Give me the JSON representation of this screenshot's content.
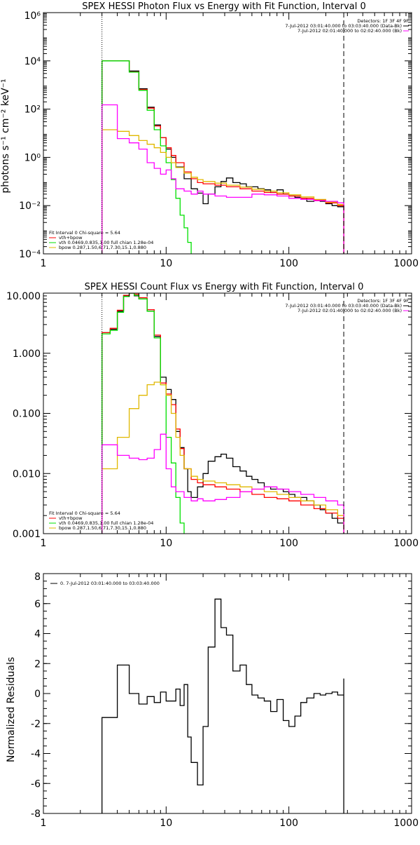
{
  "colors": {
    "background": "#ffffff",
    "axes": "#000000",
    "data": "#000000",
    "total": "#ff0000",
    "vth": "#00e000",
    "bpow": "#e0b800",
    "bk": "#ff00ff"
  },
  "chart_data": [
    {
      "type": "line",
      "title": "SPEX HESSI Photon Flux vs Energy with Fit Function, Interval 0",
      "xlabel": "",
      "ylabel": "photons s⁻¹ cm⁻² keV⁻¹",
      "xscale": "log",
      "yscale": "log",
      "xlim": [
        1,
        1000
      ],
      "ylim": [
        0.0001,
        1000000
      ],
      "xticks": [
        1,
        10,
        100,
        1000
      ],
      "xtick_labels": [
        "1",
        "10",
        "100",
        "1000"
      ],
      "yticks": [
        0.0001,
        0.01,
        1,
        100,
        10000,
        1000000
      ],
      "ytick_labels": [
        "10⁻⁴",
        "10⁻²",
        "10⁰",
        "10²",
        "10⁴",
        "10⁶"
      ],
      "vlines": [
        {
          "x": 3,
          "style": "dotted"
        },
        {
          "x": 280,
          "style": "dashed"
        }
      ],
      "detectors_label": "Detectors: 1F 3F 4F 9F",
      "header_lines": [
        "7-Jul-2012 03:01:40.000 to 03:03:40.000 (Data-Bk)",
        "7-Jul-2012 02:01:40.000 to 02:02:40.000 (Bk)"
      ],
      "fit_lines": [
        "Fit Interval 0   Chi-square = 5.64",
        "vth+bpow",
        "vth 0.0469,0.835,1.00  full chian 1.28e-04",
        "bpow 0.287,1.50,6.71,7.30,15.1,0.880"
      ],
      "series": [
        {
          "name": "Data-Bk",
          "color": "#000000",
          "x": [
            3,
            4,
            5,
            6,
            7,
            8,
            9,
            10,
            11,
            12,
            14,
            16,
            18,
            20,
            22,
            25,
            28,
            31,
            35,
            40,
            45,
            50,
            56,
            63,
            71,
            80,
            90,
            100,
            112,
            125,
            140,
            160,
            180,
            200,
            225,
            250,
            280
          ],
          "y": [
            10000,
            10000,
            3800,
            700,
            120,
            22,
            6.5,
            2.2,
            1.0,
            0.4,
            0.13,
            0.05,
            0.033,
            0.012,
            0.03,
            0.06,
            0.1,
            0.14,
            0.09,
            0.08,
            0.06,
            0.06,
            0.05,
            0.045,
            0.035,
            0.045,
            0.03,
            0.025,
            0.022,
            0.02,
            0.015,
            0.017,
            0.015,
            0.012,
            0.01,
            0.009,
            0.012
          ]
        },
        {
          "name": "vth+bpow",
          "color": "#ff0000",
          "x": [
            3,
            4,
            5,
            6,
            7,
            8,
            9,
            10,
            11,
            12,
            14,
            16,
            18,
            20,
            25,
            31,
            40,
            50,
            63,
            80,
            100,
            125,
            160,
            200,
            250,
            280
          ],
          "y": [
            10000,
            10000,
            3500,
            650,
            110,
            20,
            6.5,
            2.5,
            1.2,
            0.6,
            0.25,
            0.13,
            0.09,
            0.08,
            0.07,
            0.06,
            0.05,
            0.04,
            0.035,
            0.03,
            0.025,
            0.02,
            0.017,
            0.013,
            0.01,
            0.009
          ]
        },
        {
          "name": "vth",
          "color": "#00e000",
          "x": [
            3,
            4,
            5,
            6,
            7,
            8,
            9,
            10,
            11,
            12,
            13,
            14,
            15,
            16
          ],
          "y": [
            10000,
            10000,
            3400,
            600,
            90,
            14,
            3.0,
            0.6,
            0.12,
            0.02,
            0.004,
            0.0012,
            0.0003,
            5e-05
          ]
        },
        {
          "name": "bpow",
          "color": "#e0b800",
          "x": [
            3,
            4,
            5,
            6,
            7,
            8,
            9,
            10,
            11,
            12,
            14,
            16,
            18,
            20,
            25,
            31,
            40,
            50,
            63,
            80,
            100,
            125,
            160,
            200,
            250,
            280
          ],
          "y": [
            14,
            12,
            8,
            5,
            3.5,
            2.5,
            1.6,
            1.0,
            0.6,
            0.38,
            0.22,
            0.15,
            0.12,
            0.1,
            0.085,
            0.07,
            0.058,
            0.048,
            0.04,
            0.034,
            0.028,
            0.023,
            0.018,
            0.014,
            0.011,
            0.009
          ]
        },
        {
          "name": "Bk",
          "color": "#ff00ff",
          "x": [
            3,
            4,
            5,
            6,
            7,
            8,
            9,
            10,
            11,
            12,
            14,
            16,
            18,
            20,
            25,
            31,
            40,
            50,
            63,
            80,
            100,
            125,
            160,
            200,
            250,
            280
          ],
          "y": [
            150,
            6,
            4,
            2.2,
            0.6,
            0.35,
            0.2,
            0.3,
            0.13,
            0.05,
            0.04,
            0.03,
            0.04,
            0.03,
            0.025,
            0.022,
            0.022,
            0.03,
            0.028,
            0.025,
            0.02,
            0.018,
            0.016,
            0.015,
            0.013,
            0.011
          ]
        }
      ]
    },
    {
      "type": "line",
      "title": "SPEX HESSI Count Flux vs Energy with Fit Function, Interval 0",
      "xlabel": "",
      "ylabel": "",
      "xscale": "log",
      "yscale": "log",
      "xlim": [
        1,
        1000
      ],
      "ylim": [
        0.001,
        10
      ],
      "xticks": [
        1,
        10,
        100,
        1000
      ],
      "xtick_labels": [
        "1",
        "10",
        "100",
        "1000"
      ],
      "yticks": [
        0.001,
        0.01,
        0.1,
        1,
        10
      ],
      "ytick_labels": [
        "0.001",
        "0.010",
        "0.100",
        "1.000",
        "10.000"
      ],
      "vlines": [
        {
          "x": 3,
          "style": "dotted"
        },
        {
          "x": 280,
          "style": "dashed"
        }
      ],
      "detectors_label": "Detectors: 1F 3F 4F 9F",
      "header_lines": [
        "7-Jul-2012 03:01:40.000 to 03:03:40.000 (Data-Bk)",
        "7-Jul-2012 02:01:40.000 to 02:02:40.000 (Bk)"
      ],
      "fit_lines": [
        "Fit Interval 0   Chi-square = 5.64",
        "vth+bpow",
        "vth 0.0469,0.835,1.00  full chian 1.28e-04",
        "bpow 0.287,1.50,6.71,7.30,15.1,0.880"
      ],
      "series": [
        {
          "name": "Data-Bk",
          "color": "#000000",
          "x": [
            3,
            3.5,
            4,
            4.5,
            5,
            5.5,
            6,
            7,
            8,
            9,
            10,
            11,
            12,
            13,
            14,
            15,
            16,
            18,
            20,
            22,
            25,
            28,
            31,
            35,
            40,
            45,
            50,
            56,
            63,
            71,
            80,
            90,
            100,
            112,
            125,
            140,
            160,
            180,
            200,
            225,
            250,
            280
          ],
          "y": [
            2.2,
            2.5,
            5,
            9,
            10,
            9,
            8,
            5,
            1.9,
            0.4,
            0.25,
            0.17,
            0.05,
            0.027,
            0.012,
            0.005,
            0.004,
            0.006,
            0.01,
            0.016,
            0.019,
            0.021,
            0.018,
            0.013,
            0.011,
            0.009,
            0.008,
            0.007,
            0.006,
            0.0055,
            0.0055,
            0.005,
            0.0045,
            0.004,
            0.004,
            0.0035,
            0.003,
            0.0025,
            0.0022,
            0.0018,
            0.0015,
            0.0022
          ]
        },
        {
          "name": "vth+bpow",
          "color": "#ff0000",
          "x": [
            3,
            3.5,
            4,
            4.5,
            5,
            5.5,
            6,
            7,
            8,
            9,
            10,
            11,
            12,
            13,
            14,
            16,
            18,
            20,
            25,
            31,
            40,
            50,
            63,
            80,
            100,
            125,
            160,
            200,
            250,
            280
          ],
          "y": [
            2.2,
            2.6,
            5.2,
            9.2,
            10.5,
            9.6,
            8.4,
            5.3,
            2.0,
            0.32,
            0.21,
            0.14,
            0.055,
            0.026,
            0.012,
            0.008,
            0.007,
            0.0065,
            0.006,
            0.0055,
            0.005,
            0.0045,
            0.004,
            0.0038,
            0.0035,
            0.003,
            0.0026,
            0.0022,
            0.0018,
            0.0016
          ]
        },
        {
          "name": "vth",
          "color": "#00e000",
          "x": [
            3,
            3.5,
            4,
            4.5,
            5,
            5.5,
            6,
            7,
            8,
            9,
            10,
            11,
            12,
            13,
            14
          ],
          "y": [
            2.1,
            2.4,
            4.8,
            8.8,
            10,
            9.2,
            8.0,
            5.0,
            1.8,
            0.3,
            0.04,
            0.015,
            0.004,
            0.0015,
            0.0005
          ]
        },
        {
          "name": "bpow",
          "color": "#e0b800",
          "x": [
            3,
            4,
            5,
            6,
            7,
            8,
            9,
            10,
            11,
            12,
            13,
            14,
            16,
            18,
            20,
            25,
            31,
            40,
            50,
            63,
            80,
            100,
            125,
            160,
            200,
            250,
            280
          ],
          "y": [
            0.012,
            0.04,
            0.12,
            0.2,
            0.3,
            0.33,
            0.3,
            0.2,
            0.1,
            0.04,
            0.02,
            0.012,
            0.009,
            0.008,
            0.0075,
            0.007,
            0.0065,
            0.006,
            0.0055,
            0.005,
            0.0045,
            0.004,
            0.0035,
            0.003,
            0.0025,
            0.002,
            0.0017
          ]
        },
        {
          "name": "Bk",
          "color": "#ff00ff",
          "x": [
            3,
            4,
            5,
            6,
            7,
            8,
            9,
            10,
            11,
            12,
            14,
            16,
            18,
            20,
            25,
            31,
            40,
            50,
            63,
            80,
            100,
            125,
            160,
            200,
            250,
            280
          ],
          "y": [
            0.03,
            0.02,
            0.018,
            0.017,
            0.018,
            0.025,
            0.045,
            0.012,
            0.006,
            0.005,
            0.004,
            0.0035,
            0.0038,
            0.0035,
            0.0037,
            0.004,
            0.005,
            0.0055,
            0.006,
            0.0055,
            0.005,
            0.0045,
            0.004,
            0.0035,
            0.003,
            0.0025
          ]
        }
      ]
    },
    {
      "type": "line",
      "title": "",
      "xlabel": "",
      "ylabel": "Normalized Residuals",
      "xscale": "log",
      "yscale": "linear",
      "xlim": [
        1,
        1000
      ],
      "ylim": [
        -8,
        8
      ],
      "xticks": [
        1,
        10,
        100,
        1000
      ],
      "xtick_labels": [
        "1",
        "10",
        "100",
        "1000"
      ],
      "yticks": [
        -8,
        -6,
        -4,
        -2,
        0,
        2,
        4,
        6,
        8
      ],
      "ytick_labels": [
        "-8",
        "-6",
        "-4",
        "-2",
        "0",
        "2",
        "4",
        "6",
        "8"
      ],
      "legend_label": "0.  7-Jul-2012 03:01:40.000 to 03:03:40.000",
      "series": [
        {
          "name": "0.",
          "color": "#000000",
          "x": [
            3,
            4,
            5,
            6,
            7,
            8,
            9,
            10,
            11,
            12,
            13,
            14,
            15,
            16,
            18,
            20,
            22,
            25,
            28,
            31,
            35,
            40,
            45,
            50,
            56,
            63,
            71,
            80,
            90,
            100,
            112,
            125,
            140,
            160,
            180,
            200,
            225,
            250,
            280
          ],
          "y": [
            -1.6,
            1.9,
            0.0,
            -0.7,
            -0.2,
            -0.6,
            0.1,
            -0.5,
            -0.5,
            0.3,
            -0.8,
            0.6,
            -2.9,
            -4.6,
            -6.1,
            -2.2,
            3.1,
            6.3,
            4.4,
            3.9,
            1.5,
            1.9,
            0.6,
            -0.1,
            -0.3,
            -0.5,
            -1.2,
            -0.4,
            -1.8,
            -2.2,
            -1.5,
            -0.6,
            -0.3,
            0.0,
            -0.1,
            0.0,
            0.1,
            -0.1,
            1.0
          ]
        }
      ]
    }
  ]
}
